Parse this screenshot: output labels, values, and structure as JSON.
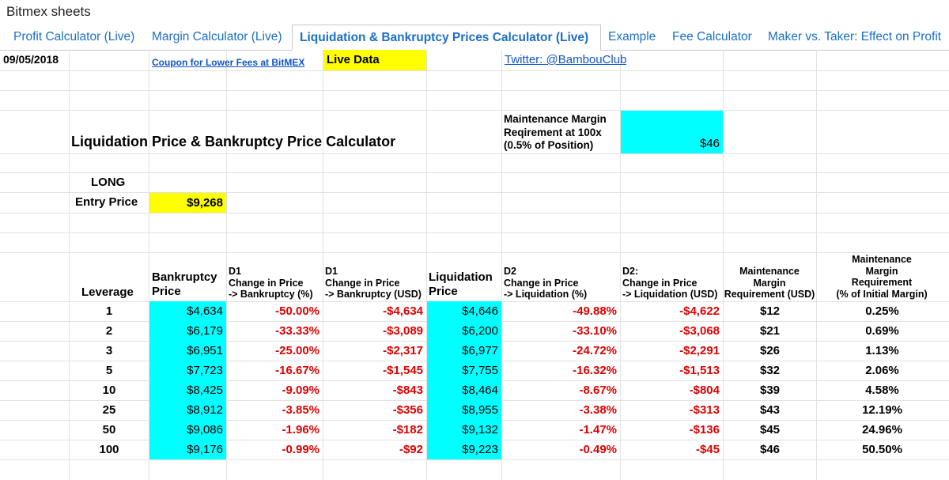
{
  "app": {
    "title": "Bitmex sheets"
  },
  "tabs": [
    {
      "label": "Profit Calculator (Live)",
      "active": false
    },
    {
      "label": "Margin Calculator (Live)",
      "active": false
    },
    {
      "label": "Liquidation & Bankruptcy Prices Calculator (Live)",
      "active": true
    },
    {
      "label": "Example",
      "active": false
    },
    {
      "label": "Fee Calculator",
      "active": false
    },
    {
      "label": "Maker vs. Taker: Effect on Profit",
      "active": false
    }
  ],
  "sheet": {
    "date": "09/05/2018",
    "coupon_link": "Coupon for Lower Fees at BitMEX",
    "live_data": "Live Data",
    "twitter_link": "Twitter: @BambouClub",
    "calc_title": "Liquidation Price & Bankruptcy Price Calculator",
    "maint_label_1": "Maintenance Margin",
    "maint_label_2": "Reqirement at 100x",
    "maint_label_3": "(0.5% of Position)",
    "maint_value": "$46",
    "position": "LONG",
    "entry_label": "Entry Price",
    "entry_value": "$9,268",
    "headers": {
      "leverage": "Leverage",
      "bankruptcy_1": "Bankruptcy",
      "bankruptcy_2": "Price",
      "d1pct_1": "D1",
      "d1pct_2": "Change in Price",
      "d1pct_3": "-> Bankruptcy (%)",
      "d1usd_1": "D1",
      "d1usd_2": "Change in Price",
      "d1usd_3": "-> Bankruptcy (USD)",
      "liq_1": "Liquidation",
      "liq_2": "Price",
      "d2pct_1": "D2",
      "d2pct_2": "Change in Price",
      "d2pct_3": "-> Liquidation (%)",
      "d2usd_1": "D2:",
      "d2usd_2": "Change in Price",
      "d2usd_3": "-> Liquidation (USD)",
      "mm_1": "Maintenance",
      "mm_2": "Margin",
      "mm_3": "Requirement (USD)",
      "mmp_1": "Maintenance",
      "mmp_2": "Margin",
      "mmp_3": "Requirement",
      "mmp_4": "(% of Initial Margin)"
    },
    "rows": [
      {
        "lev": "1",
        "bk": "$4,634",
        "d1p": "-50.00%",
        "d1u": "-$4,634",
        "liq": "$4,646",
        "d2p": "-49.88%",
        "d2u": "-$4,622",
        "mm": "$12",
        "mmp": "0.25%"
      },
      {
        "lev": "2",
        "bk": "$6,179",
        "d1p": "-33.33%",
        "d1u": "-$3,089",
        "liq": "$6,200",
        "d2p": "-33.10%",
        "d2u": "-$3,068",
        "mm": "$21",
        "mmp": "0.69%"
      },
      {
        "lev": "3",
        "bk": "$6,951",
        "d1p": "-25.00%",
        "d1u": "-$2,317",
        "liq": "$6,977",
        "d2p": "-24.72%",
        "d2u": "-$2,291",
        "mm": "$26",
        "mmp": "1.13%"
      },
      {
        "lev": "5",
        "bk": "$7,723",
        "d1p": "-16.67%",
        "d1u": "-$1,545",
        "liq": "$7,755",
        "d2p": "-16.32%",
        "d2u": "-$1,513",
        "mm": "$32",
        "mmp": "2.06%"
      },
      {
        "lev": "10",
        "bk": "$8,425",
        "d1p": "-9.09%",
        "d1u": "-$843",
        "liq": "$8,464",
        "d2p": "-8.67%",
        "d2u": "-$804",
        "mm": "$39",
        "mmp": "4.58%"
      },
      {
        "lev": "25",
        "bk": "$8,912",
        "d1p": "-3.85%",
        "d1u": "-$356",
        "liq": "$8,955",
        "d2p": "-3.38%",
        "d2u": "-$313",
        "mm": "$43",
        "mmp": "12.19%"
      },
      {
        "lev": "50",
        "bk": "$9,086",
        "d1p": "-1.96%",
        "d1u": "-$182",
        "liq": "$9,132",
        "d2p": "-1.47%",
        "d2u": "-$136",
        "mm": "$45",
        "mmp": "24.96%"
      },
      {
        "lev": "100",
        "bk": "$9,176",
        "d1p": "-0.99%",
        "d1u": "-$92",
        "liq": "$9,223",
        "d2p": "-0.49%",
        "d2u": "-$45",
        "mm": "$46",
        "mmp": "50.50%"
      }
    ]
  },
  "colors": {
    "cyan": "#00ffff",
    "yellow": "#ffff00",
    "negative": "#e00000",
    "link": "#1155cc",
    "tab_text": "#1a6fc9"
  }
}
